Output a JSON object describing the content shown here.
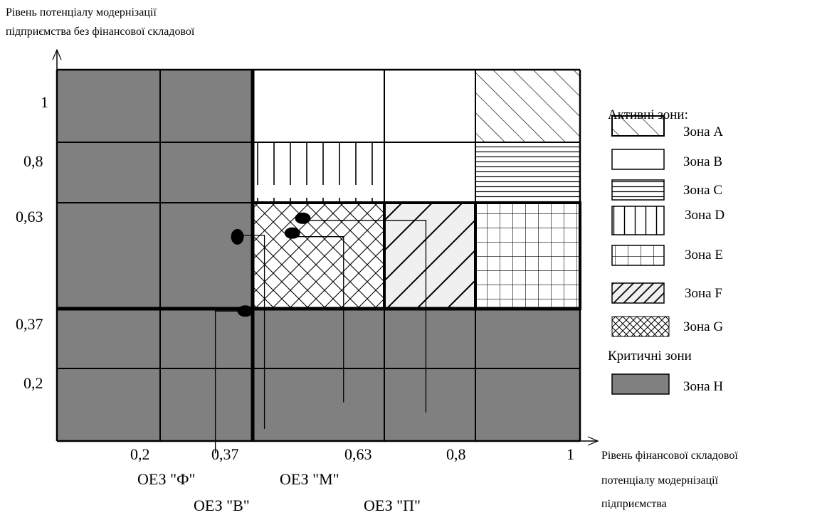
{
  "axes": {
    "y_label_line1": "Рівень потенціалу модернізації",
    "y_label_line2": "підприємства без фінансової складової",
    "x_label_line1": "Рівень фінансової складової",
    "x_label_line2": "потенціалу модернізації",
    "x_label_line3": "підприємства",
    "x_ticks": [
      "0,2",
      "0,37",
      "0,63",
      "0,8",
      "1"
    ],
    "y_ticks": [
      "1",
      "0,8",
      "0,63",
      "0,37",
      "0,2"
    ]
  },
  "zones": {
    "boundaries": [
      0,
      0.2,
      0.37,
      0.63,
      0.8,
      1
    ],
    "cells": [
      {
        "x_band": 0,
        "y_band": 0,
        "zone": "H"
      },
      {
        "x_band": 1,
        "y_band": 0,
        "zone": "H"
      },
      {
        "x_band": 2,
        "y_band": 0,
        "zone": "H"
      },
      {
        "x_band": 3,
        "y_band": 0,
        "zone": "H"
      },
      {
        "x_band": 4,
        "y_band": 0,
        "zone": "H"
      },
      {
        "x_band": 0,
        "y_band": 1,
        "zone": "H"
      },
      {
        "x_band": 1,
        "y_band": 1,
        "zone": "H"
      },
      {
        "x_band": 2,
        "y_band": 1,
        "zone": "H"
      },
      {
        "x_band": 3,
        "y_band": 1,
        "zone": "H"
      },
      {
        "x_band": 4,
        "y_band": 1,
        "zone": "H"
      },
      {
        "x_band": 0,
        "y_band": 2,
        "zone": "H"
      },
      {
        "x_band": 1,
        "y_band": 2,
        "zone": "H"
      },
      {
        "x_band": 2,
        "y_band": 2,
        "zone": "G"
      },
      {
        "x_band": 3,
        "y_band": 2,
        "zone": "F"
      },
      {
        "x_band": 4,
        "y_band": 2,
        "zone": "E"
      },
      {
        "x_band": 0,
        "y_band": 3,
        "zone": "H"
      },
      {
        "x_band": 1,
        "y_band": 3,
        "zone": "H"
      },
      {
        "x_band": 2,
        "y_band": 3,
        "zone": "D"
      },
      {
        "x_band": 3,
        "y_band": 3,
        "zone": "B"
      },
      {
        "x_band": 4,
        "y_band": 3,
        "zone": "C"
      },
      {
        "x_band": 0,
        "y_band": 4,
        "zone": "H"
      },
      {
        "x_band": 1,
        "y_band": 4,
        "zone": "H"
      },
      {
        "x_band": 2,
        "y_band": 4,
        "zone": "B"
      },
      {
        "x_band": 3,
        "y_band": 4,
        "zone": "B"
      },
      {
        "x_band": 4,
        "y_band": 4,
        "zone": "A"
      }
    ]
  },
  "legend": {
    "active_title": "Активні зони:",
    "critical_title": "Критичні зони",
    "items": [
      {
        "zone": "A",
        "label": "Зона А"
      },
      {
        "zone": "B",
        "label": "Зона В"
      },
      {
        "zone": "C",
        "label": "Зона С"
      },
      {
        "zone": "D",
        "label": "Зона D"
      },
      {
        "zone": "E",
        "label": "Зона Е"
      },
      {
        "zone": "F",
        "label": "Зона F"
      },
      {
        "zone": "G",
        "label": "Зона G"
      },
      {
        "zone": "H",
        "label": "Зона Н"
      }
    ]
  },
  "points": [
    {
      "label": "ОЕЗ \"Ф\"",
      "x": 0.36,
      "y": 0.35
    },
    {
      "label": "ОЕЗ \"В\"",
      "x": 0.345,
      "y": 0.55
    },
    {
      "label": "ОЕЗ \"М\"",
      "x": 0.45,
      "y": 0.56
    },
    {
      "label": "ОЕЗ \"П\"",
      "x": 0.47,
      "y": 0.6
    }
  ],
  "colors": {
    "critical_fill": "#808080",
    "zone_f_fill": "#f0f0f0"
  }
}
